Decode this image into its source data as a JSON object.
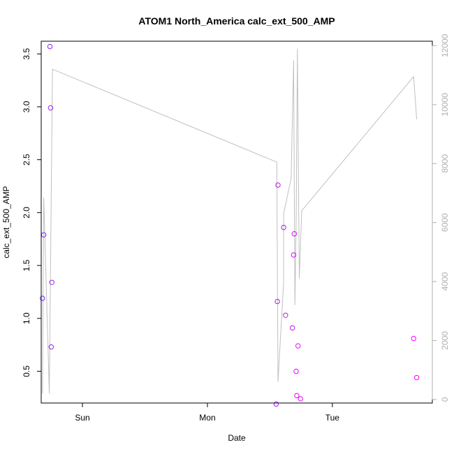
{
  "chart_data": {
    "type": "scatter",
    "title": "ATOM1 North_America calc_ext_500_AMP",
    "xlabel": "Date",
    "ylabel": "calc_ext_500_AMP",
    "x_unit": "days",
    "xlim": [
      -0.33,
      2.8
    ],
    "x_ticks": [
      {
        "value": 0,
        "label": "Sun"
      },
      {
        "value": 1,
        "label": "Mon"
      },
      {
        "value": 2,
        "label": "Tue"
      }
    ],
    "ylim": [
      0.2,
      3.62
    ],
    "y_ticks": [
      {
        "value": 0.5,
        "label": "0.5"
      },
      {
        "value": 1.0,
        "label": "1.0"
      },
      {
        "value": 1.5,
        "label": "1.5"
      },
      {
        "value": 2.0,
        "label": "2.0"
      },
      {
        "value": 2.5,
        "label": "2.5"
      },
      {
        "value": 3.0,
        "label": "3.0"
      },
      {
        "value": 3.5,
        "label": "3.5"
      }
    ],
    "y2lim": [
      -120,
      12150
    ],
    "y2_ticks": [
      {
        "value": 0,
        "label": "0"
      },
      {
        "value": 2000,
        "label": "2000"
      },
      {
        "value": 4000,
        "label": "4000"
      },
      {
        "value": 6000,
        "label": "6000"
      },
      {
        "value": 8000,
        "label": "8000"
      },
      {
        "value": 10000,
        "label": "10000"
      },
      {
        "value": 12000,
        "label": "12000"
      }
    ],
    "series": [
      {
        "kind": "points",
        "axis": "left",
        "color_start": "#7a2ee6",
        "color_end": "#ff00ff",
        "x": [
          -0.32,
          -0.31,
          -0.26,
          -0.255,
          -0.25,
          -0.245,
          1.55,
          1.56,
          1.565,
          1.61,
          1.625,
          1.68,
          1.69,
          1.695,
          1.71,
          1.715,
          1.725,
          1.745,
          2.65,
          2.675
        ],
        "y": [
          1.19,
          1.79,
          3.57,
          2.99,
          0.73,
          1.34,
          0.19,
          1.16,
          2.26,
          1.86,
          1.03,
          0.91,
          1.6,
          1.8,
          0.5,
          0.27,
          0.74,
          0.24,
          0.81,
          0.44
        ]
      },
      {
        "kind": "line",
        "axis": "right",
        "color": "#c0c0c0",
        "x": [
          -0.32,
          -0.31,
          -0.265,
          -0.24,
          1.555,
          1.565,
          1.61,
          1.61,
          1.67,
          1.69,
          1.7,
          1.71,
          1.72,
          1.735,
          1.755,
          2.65,
          2.675
        ],
        "y": [
          200,
          6850,
          200,
          11200,
          8050,
          600,
          4000,
          6300,
          7500,
          11500,
          3200,
          6000,
          11900,
          4100,
          6400,
          10950,
          9500
        ]
      }
    ]
  }
}
